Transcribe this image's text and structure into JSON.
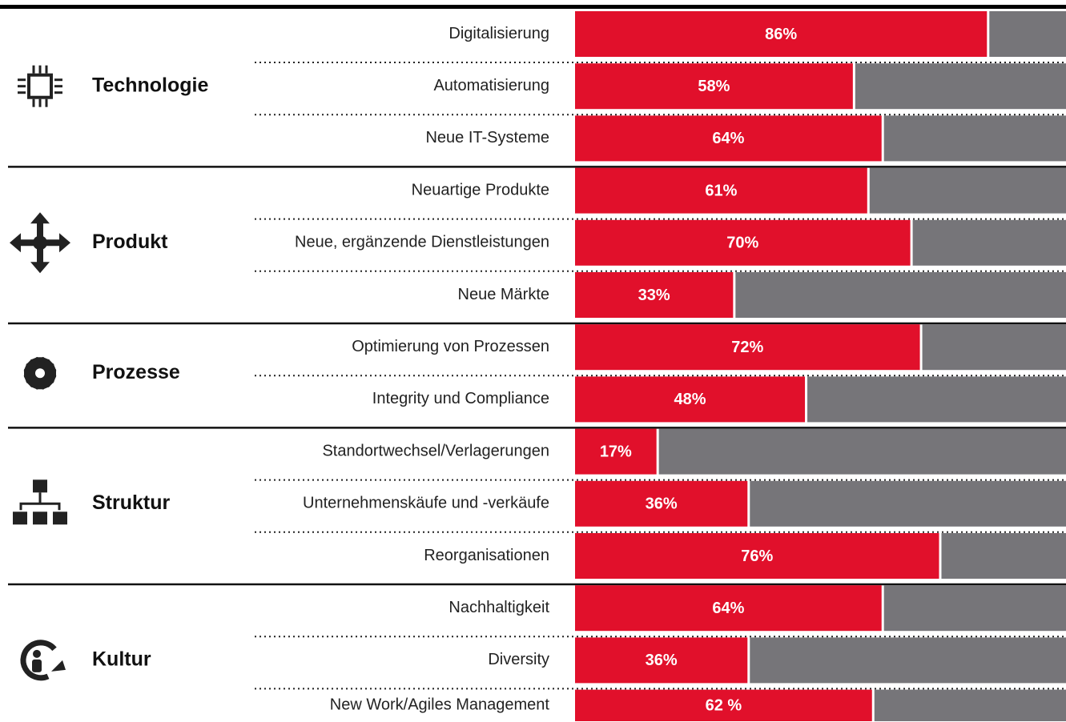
{
  "chart_data": {
    "type": "bar",
    "orientation": "horizontal",
    "xlim": [
      0,
      100
    ],
    "color": "#e1102b",
    "rest_color": "#767579",
    "groups": [
      {
        "name": "Technologie",
        "categories": [
          "Digitalisierung",
          "Automatisierung",
          "Neue IT-Systeme"
        ],
        "values": [
          86,
          58,
          64
        ],
        "value_labels": [
          "86%",
          "58%",
          "64%"
        ]
      },
      {
        "name": "Produkt",
        "categories": [
          "Neuartige Produkte",
          "Neue, ergänzende Dienstleistungen",
          "Neue Märkte"
        ],
        "values": [
          61,
          70,
          33
        ],
        "value_labels": [
          "61%",
          "70%",
          "33%"
        ]
      },
      {
        "name": "Prozesse",
        "categories": [
          "Optimierung von Prozessen",
          "Integrity und Compliance"
        ],
        "values": [
          72,
          48
        ],
        "value_labels": [
          "72%",
          "48%"
        ]
      },
      {
        "name": "Struktur",
        "categories": [
          "Standortwechsel/Verlagerungen",
          "Unternehmenskäufe und -verkäufe",
          "Reorganisationen"
        ],
        "values": [
          17,
          36,
          76
        ],
        "value_labels": [
          "17%",
          "36%",
          "76%"
        ]
      },
      {
        "name": "Kultur",
        "categories": [
          "Nachhaltigkeit",
          "Diversity",
          "New Work/Agiles Management"
        ],
        "values": [
          64,
          36,
          62
        ],
        "value_labels": [
          "64%",
          "36%",
          "62 %"
        ]
      }
    ]
  }
}
